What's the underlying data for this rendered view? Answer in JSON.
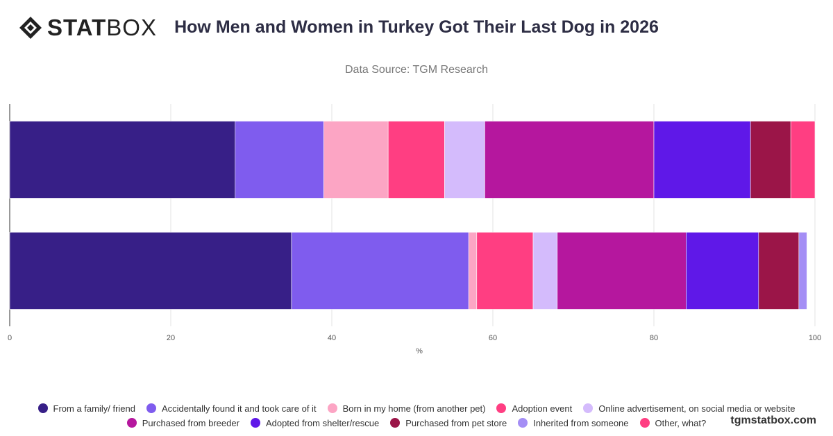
{
  "brand": {
    "logo_bold": "STAT",
    "logo_light": "BOX",
    "watermark": "tgmstatbox.com"
  },
  "header": {
    "title": "How Men and Women in Turkey Got Their Last Dog in 2026",
    "subtitle": "Data Source: TGM Research"
  },
  "chart_data": {
    "type": "bar",
    "orientation": "horizontal",
    "stacked": true,
    "xlabel": "%",
    "xlim": [
      0,
      100
    ],
    "xticks": [
      0,
      20,
      40,
      60,
      80,
      100
    ],
    "grid": true,
    "legend_position": "bottom",
    "categories": [
      "",
      ""
    ],
    "series": [
      {
        "name": "From a family/ friend",
        "color": "#371F87",
        "values": [
          28,
          35
        ]
      },
      {
        "name": "Accidentally found it and took care of it",
        "color": "#7F5CEE",
        "values": [
          11,
          22
        ]
      },
      {
        "name": "Born in my home (from another pet)",
        "color": "#FCA5C4",
        "values": [
          8,
          1
        ]
      },
      {
        "name": "Adoption event",
        "color": "#FF3E82",
        "values": [
          7,
          7
        ]
      },
      {
        "name": "Online advertisement, on social media or website",
        "color": "#D4BBFC",
        "values": [
          5,
          3
        ]
      },
      {
        "name": "Purchased from breeder",
        "color": "#B5179E",
        "values": [
          21,
          16
        ]
      },
      {
        "name": "Adopted from shelter/rescue",
        "color": "#5F18E8",
        "values": [
          12,
          9
        ]
      },
      {
        "name": "Purchased from pet store",
        "color": "#9B1548",
        "values": [
          5,
          5
        ]
      },
      {
        "name": "Inherited from someone",
        "color": "#A48EF5",
        "values": [
          0,
          1
        ]
      },
      {
        "name": "Other, what?",
        "color": "#FF3E82",
        "values": [
          3,
          0
        ]
      }
    ]
  }
}
